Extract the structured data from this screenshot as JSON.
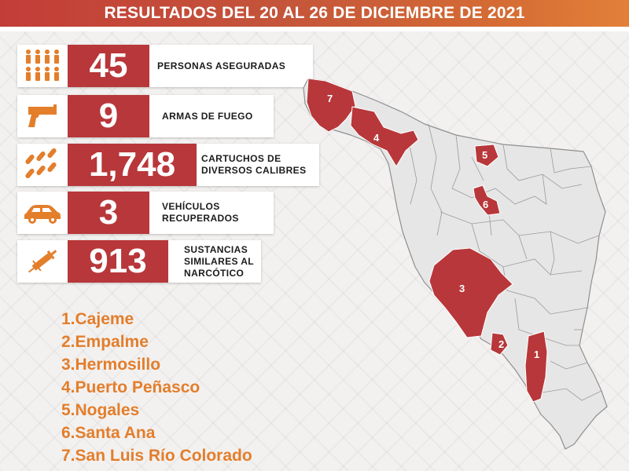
{
  "header": {
    "title": "RESULTADOS DEL 20 AL 26 DE DICIEMBRE DE 2021"
  },
  "stats": [
    {
      "value": "45",
      "label": "PERSONAS ASEGURADAS",
      "icon": "people-icon"
    },
    {
      "value": "9",
      "label": "ARMAS DE FUEGO",
      "icon": "pistol-icon"
    },
    {
      "value": "1,748",
      "label_line1": "CARTUCHOS DE",
      "label_line2": "DIVERSOS CALIBRES",
      "icon": "bullets-icon"
    },
    {
      "value": "3",
      "label_line1": "VEHÍCULOS",
      "label_line2": "RECUPERADOS",
      "icon": "car-icon"
    },
    {
      "value": "913",
      "label_line1": "SUSTANCIAS",
      "label_line2": "SIMILARES AL",
      "label_line3": "NARCÓTICO",
      "icon": "syringe-icon"
    }
  ],
  "legend": [
    "1.Cajeme",
    "2.Empalme",
    "3.Hermosillo",
    "4.Puerto Peñasco",
    "5.Nogales",
    "6.Santa Ana",
    "7.San Luis Río Colorado"
  ],
  "map": {
    "markers": [
      "1",
      "2",
      "3",
      "4",
      "5",
      "6",
      "7"
    ]
  },
  "colors": {
    "accent": "#b8373a",
    "legend_text": "#e37e2b",
    "header_start": "#c33d38",
    "header_end": "#e2803a",
    "map_fill": "#e6e6e6"
  }
}
